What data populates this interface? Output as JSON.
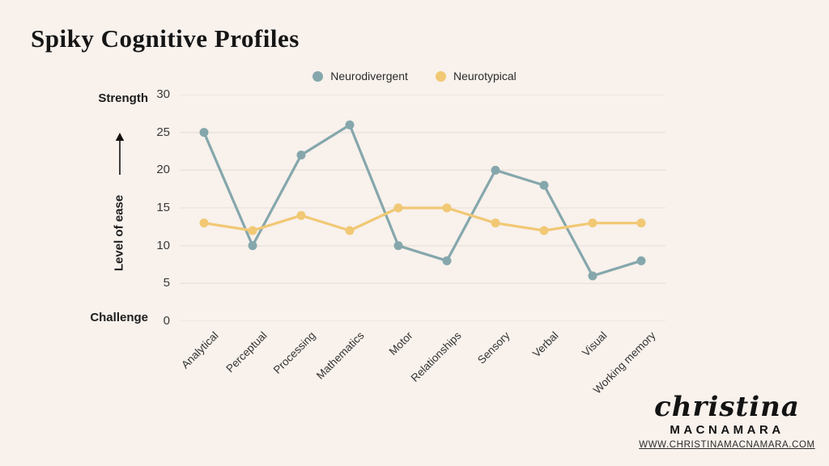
{
  "page": {
    "title": "Spiky Cognitive Profiles",
    "background_color": "#F8F1EC"
  },
  "axis_annotations": {
    "top": "Strength",
    "middle": "Level of ease",
    "bottom": "Challenge"
  },
  "branding": {
    "name_script": "christina",
    "name_caps": "MACNAMARA",
    "website": "WWW.CHRISTINAMACNAMARA.COM"
  },
  "chart_data": {
    "type": "line",
    "title": "Spiky Cognitive Profiles",
    "categories": [
      "Analytical",
      "Perceptual",
      "Processing",
      "Mathematics",
      "Motor",
      "Relationships",
      "Sensory",
      "Verbal",
      "Visual",
      "Working memory"
    ],
    "series": [
      {
        "name": "Neurodivergent",
        "color": "#85A7AC",
        "values": [
          25,
          10,
          22,
          26,
          10,
          8,
          20,
          18,
          6,
          8
        ]
      },
      {
        "name": "Neurotypical",
        "color": "#F1C874",
        "values": [
          13,
          12,
          14,
          12,
          15,
          15,
          13,
          12,
          13,
          13
        ]
      }
    ],
    "ylim": [
      0,
      30
    ],
    "ytick_interval": 5,
    "yticks": [
      30,
      25,
      20,
      15,
      10,
      5,
      0
    ],
    "ylabel": "Level of ease",
    "xlabel": "",
    "grid": true,
    "grid_color": "#EAE2DB",
    "legend_position": "top",
    "point_radius": 5.5,
    "line_width": 3.2
  }
}
